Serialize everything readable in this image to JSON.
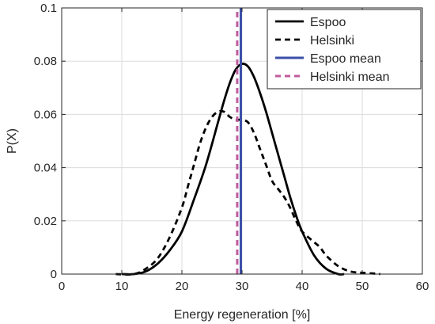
{
  "chart_data": {
    "type": "line",
    "title": "",
    "xlabel": "Energy regeneration [%]",
    "ylabel": "P(X)",
    "xlim": [
      0,
      60
    ],
    "ylim": [
      0,
      0.1
    ],
    "xticks": [
      0,
      10,
      20,
      30,
      40,
      50,
      60
    ],
    "xtick_labels": [
      "0",
      "10",
      "20",
      "30",
      "40",
      "50",
      "60"
    ],
    "yticks": [
      0,
      0.02,
      0.04,
      0.06,
      0.08,
      0.1
    ],
    "ytick_labels": [
      "0",
      "0.02",
      "0.04",
      "0.06",
      "0.08",
      "0.1"
    ],
    "grid": true,
    "legend_position": "top-right",
    "series": [
      {
        "name": "Espoo",
        "color": "#000000",
        "style": "solid",
        "x": [
          10,
          12,
          14,
          16,
          18,
          20,
          22,
          24,
          26,
          27,
          28,
          29,
          30,
          31,
          32,
          33,
          34,
          35,
          36,
          37,
          38,
          39,
          40,
          42,
          44,
          46,
          47
        ],
        "y": [
          0.0,
          0.0,
          0.001,
          0.004,
          0.009,
          0.016,
          0.028,
          0.041,
          0.057,
          0.065,
          0.072,
          0.077,
          0.079,
          0.078,
          0.074,
          0.068,
          0.061,
          0.053,
          0.045,
          0.037,
          0.029,
          0.022,
          0.016,
          0.007,
          0.002,
          0.0,
          0.0
        ]
      },
      {
        "name": "Helsinki",
        "color": "#000000",
        "style": "dashed",
        "x": [
          9,
          12,
          14,
          16,
          18,
          20,
          21,
          22,
          23,
          24,
          25,
          26,
          27,
          28,
          29,
          30,
          31,
          32,
          33,
          34,
          35,
          36,
          37,
          38,
          39,
          40,
          42,
          43,
          44,
          46,
          48,
          50,
          52,
          53
        ],
        "y": [
          0.0,
          0.0,
          0.002,
          0.006,
          0.014,
          0.025,
          0.033,
          0.041,
          0.049,
          0.055,
          0.059,
          0.061,
          0.061,
          0.059,
          0.058,
          0.058,
          0.057,
          0.053,
          0.047,
          0.041,
          0.035,
          0.032,
          0.029,
          0.025,
          0.02,
          0.016,
          0.012,
          0.01,
          0.007,
          0.003,
          0.001,
          0.0005,
          0.0002,
          0.0
        ]
      },
      {
        "name": "Espoo mean",
        "color": "#3b4fa8",
        "style": "solid-vertical",
        "x": [
          29.8,
          29.8
        ],
        "y": [
          0,
          0.1
        ]
      },
      {
        "name": "Helsinki mean",
        "color": "#c05c9e",
        "style": "dashed-vertical",
        "x": [
          29.2,
          29.2
        ],
        "y": [
          0,
          0.1
        ]
      }
    ]
  }
}
